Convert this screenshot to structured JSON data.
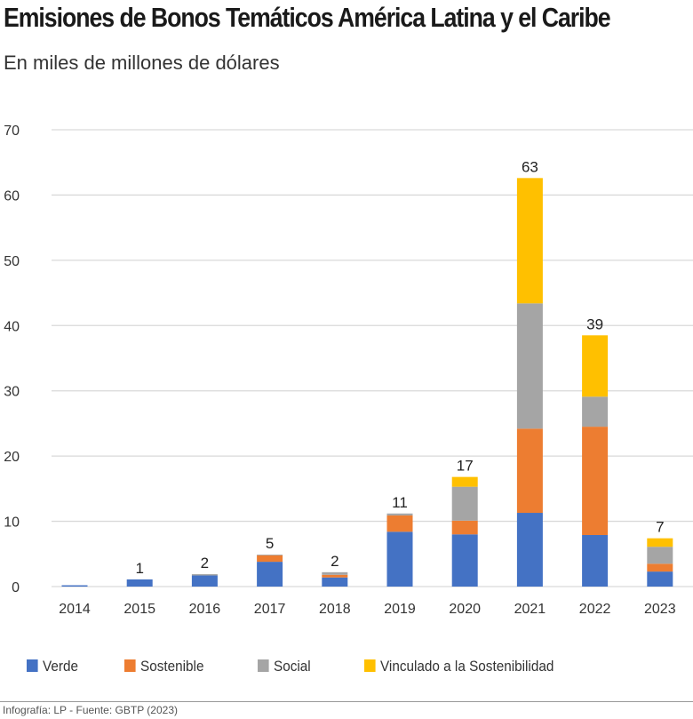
{
  "chart_data": {
    "type": "bar",
    "stacked": true,
    "title": "Emisiones de Bonos Temáticos América Latina y el Caribe",
    "subtitle": "En miles de millones de dólares",
    "categories": [
      "2014",
      "2015",
      "2016",
      "2017",
      "2018",
      "2019",
      "2020",
      "2021",
      "2022",
      "2023"
    ],
    "series": [
      {
        "name": "Verde",
        "color": "#4472c4",
        "values": [
          0.2,
          1.1,
          1.7,
          3.8,
          1.4,
          8.4,
          8.0,
          11.3,
          7.9,
          2.3
        ]
      },
      {
        "name": "Sostenible",
        "color": "#ed7d31",
        "values": [
          0,
          0,
          0,
          1.0,
          0.4,
          2.5,
          2.1,
          12.9,
          16.6,
          1.2
        ]
      },
      {
        "name": "Social",
        "color": "#a5a5a5",
        "values": [
          0,
          0,
          0.2,
          0.1,
          0.4,
          0.3,
          5.2,
          19.2,
          4.6,
          2.6
        ]
      },
      {
        "name": "Vinculado a la Sostenibilidad",
        "color": "#ffc000",
        "values": [
          0,
          0,
          0,
          0,
          0,
          0,
          1.5,
          19.2,
          9.4,
          1.3
        ]
      }
    ],
    "data_labels": [
      "",
      "1",
      "2",
      "5",
      "2",
      "11",
      "17",
      "63",
      "39",
      "7"
    ],
    "yticks": [
      "0",
      "10",
      "20",
      "30",
      "40",
      "50",
      "60",
      "70"
    ],
    "ylim": [
      0,
      70
    ],
    "grid": true,
    "legend_position": "bottom"
  },
  "footer": "Infografía: LP - Fuente: GBTP (2023)"
}
